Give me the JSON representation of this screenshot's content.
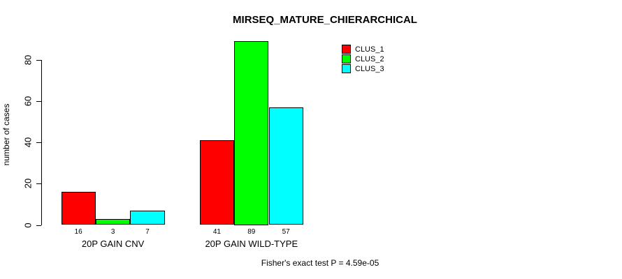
{
  "chart_data": {
    "type": "bar",
    "title": "MIRSEQ_MATURE_CHIERARCHICAL",
    "xlabel": "",
    "ylabel": "number of cases",
    "categories": [
      "20P GAIN CNV",
      "20P GAIN WILD-TYPE"
    ],
    "series": [
      {
        "name": "CLUS_1",
        "color": "#FF0000",
        "values": [
          16,
          41
        ]
      },
      {
        "name": "CLUS_2",
        "color": "#00FF00",
        "values": [
          3,
          89
        ]
      },
      {
        "name": "CLUS_3",
        "color": "#00FFFF",
        "values": [
          7,
          57
        ]
      }
    ],
    "bar_value_labels": [
      [
        "16",
        "3",
        "7"
      ],
      [
        "41",
        "89",
        "57"
      ]
    ],
    "yticks": [
      0,
      20,
      40,
      60,
      80
    ],
    "ylim": [
      0,
      89
    ],
    "grid": false,
    "legend_position": "top-right",
    "annotation": "Fisher's exact test P = 4.59e-05"
  },
  "colors": {
    "background": "#FFFFFF",
    "text": "#000000",
    "bar_border": "#000000",
    "axis": "#000000"
  }
}
